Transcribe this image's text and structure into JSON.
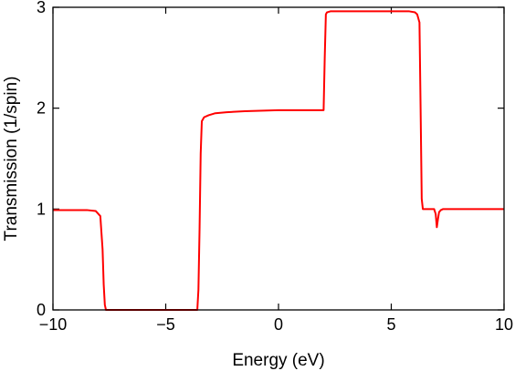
{
  "chart_data": {
    "type": "line",
    "title": "",
    "xlabel": "Energy (eV)",
    "ylabel": "Transmission (1/spin)",
    "xlim": [
      -10,
      10
    ],
    "ylim": [
      0,
      3
    ],
    "x_ticks": [
      -10,
      -5,
      0,
      5,
      10
    ],
    "x_tick_labels": [
      "−10",
      "−5",
      "0",
      "5",
      "10"
    ],
    "y_ticks": [
      0,
      1,
      2,
      3
    ],
    "y_tick_labels": [
      "0",
      "1",
      "2",
      "3"
    ],
    "grid": false,
    "legend": "none",
    "series": [
      {
        "color": "#ff0000",
        "x": [
          -10,
          -8.5,
          -8.1,
          -7.9,
          -7.8,
          -7.75,
          -7.7,
          -7.65,
          -3.6,
          -3.55,
          -3.5,
          -3.45,
          -3.4,
          -3.3,
          -3.1,
          -2.8,
          -2.3,
          -1.5,
          0,
          1.5,
          2.0,
          2.05,
          2.1,
          2.15,
          2.3,
          3.0,
          4.5,
          5.8,
          6.05,
          6.15,
          6.25,
          6.3,
          6.35,
          6.4,
          6.9,
          6.97,
          7.02,
          7.07,
          7.12,
          7.2,
          7.3,
          10
        ],
        "y": [
          0.99,
          0.99,
          0.98,
          0.93,
          0.6,
          0.25,
          0.05,
          0,
          0,
          0.2,
          0.8,
          1.55,
          1.87,
          1.91,
          1.93,
          1.95,
          1.96,
          1.97,
          1.98,
          1.98,
          1.98,
          2.5,
          2.93,
          2.95,
          2.96,
          2.96,
          2.96,
          2.96,
          2.95,
          2.93,
          2.85,
          2.0,
          1.1,
          1.0,
          1.0,
          0.95,
          0.82,
          0.9,
          0.97,
          0.99,
          1.0,
          1.0
        ]
      }
    ]
  }
}
